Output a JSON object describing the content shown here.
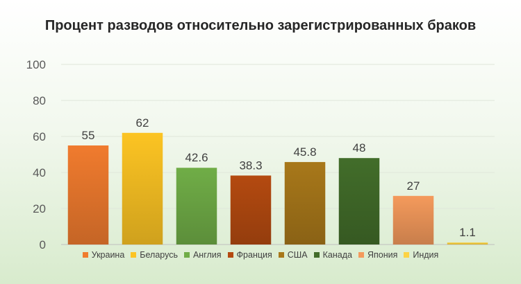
{
  "chart_data": {
    "type": "bar",
    "title": "Процент разводов относительно зарегистрированных браков",
    "categories": [
      "Украина",
      "Беларусь",
      "Англия",
      "Франция",
      "США",
      "Канада",
      "Япония",
      "Индия"
    ],
    "values": [
      55,
      62,
      42.6,
      38.3,
      45.8,
      48,
      27,
      1.1
    ],
    "value_labels": [
      "55",
      "62",
      "42.6",
      "38.3",
      "45.8",
      "48",
      "27",
      "1.1"
    ],
    "colors": [
      "#f07b2e",
      "#fcc423",
      "#70ad47",
      "#b44a10",
      "#a8781a",
      "#426d2a",
      "#f49a5c",
      "#fcd344"
    ],
    "ylim": [
      0,
      100
    ],
    "yticks": [
      "0",
      "20",
      "40",
      "60",
      "80",
      "100"
    ],
    "grid": true,
    "legend_position": "bottom",
    "xlabel": "",
    "ylabel": ""
  }
}
